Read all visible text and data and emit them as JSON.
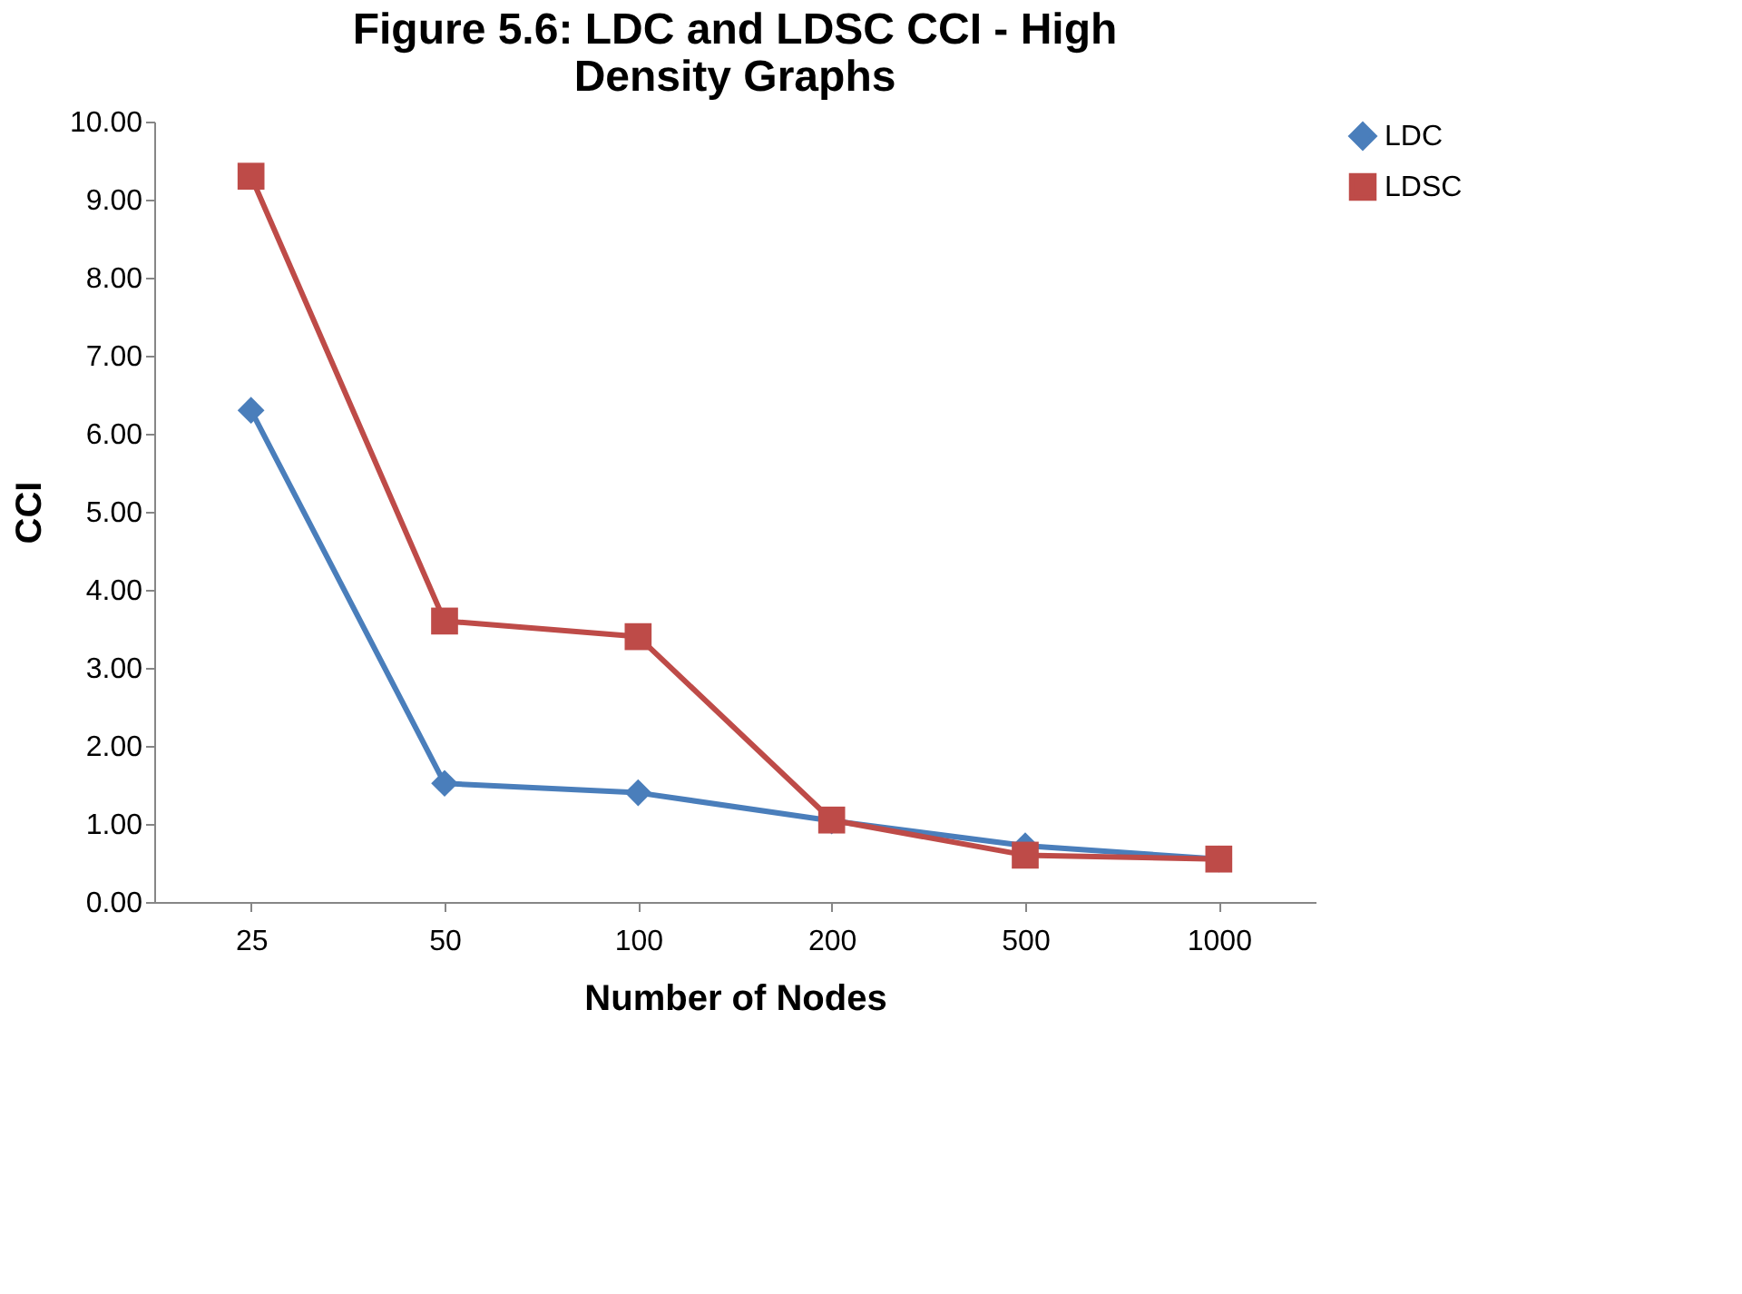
{
  "chart_data": {
    "type": "line",
    "title": "Figure 5.6: LDC and LDSC  CCI - High Density Graphs",
    "xlabel": "Number of Nodes",
    "ylabel": "CCI",
    "categories": [
      "25",
      "50",
      "100",
      "200",
      "500",
      "1000"
    ],
    "series": [
      {
        "name": "LDC",
        "color": "#4a7ebb",
        "marker": "diamond",
        "values": [
          6.3,
          1.52,
          1.4,
          1.04,
          0.72,
          0.55
        ]
      },
      {
        "name": "LDSC",
        "color": "#be4b48",
        "marker": "square",
        "values": [
          9.3,
          3.6,
          3.4,
          1.05,
          0.6,
          0.55
        ]
      }
    ],
    "ylim": [
      0,
      10
    ],
    "yticks": [
      {
        "value": 0,
        "label": "0.00"
      },
      {
        "value": 1,
        "label": "1.00"
      },
      {
        "value": 2,
        "label": "2.00"
      },
      {
        "value": 3,
        "label": "3.00"
      },
      {
        "value": 4,
        "label": "4.00"
      },
      {
        "value": 5,
        "label": "5.00"
      },
      {
        "value": 6,
        "label": "6.00"
      },
      {
        "value": 7,
        "label": "7.00"
      },
      {
        "value": 8,
        "label": "8.00"
      },
      {
        "value": 9,
        "label": "9.00"
      },
      {
        "value": 10,
        "label": "10.00"
      }
    ],
    "grid": false,
    "legend": "right",
    "line_style": "solid"
  }
}
